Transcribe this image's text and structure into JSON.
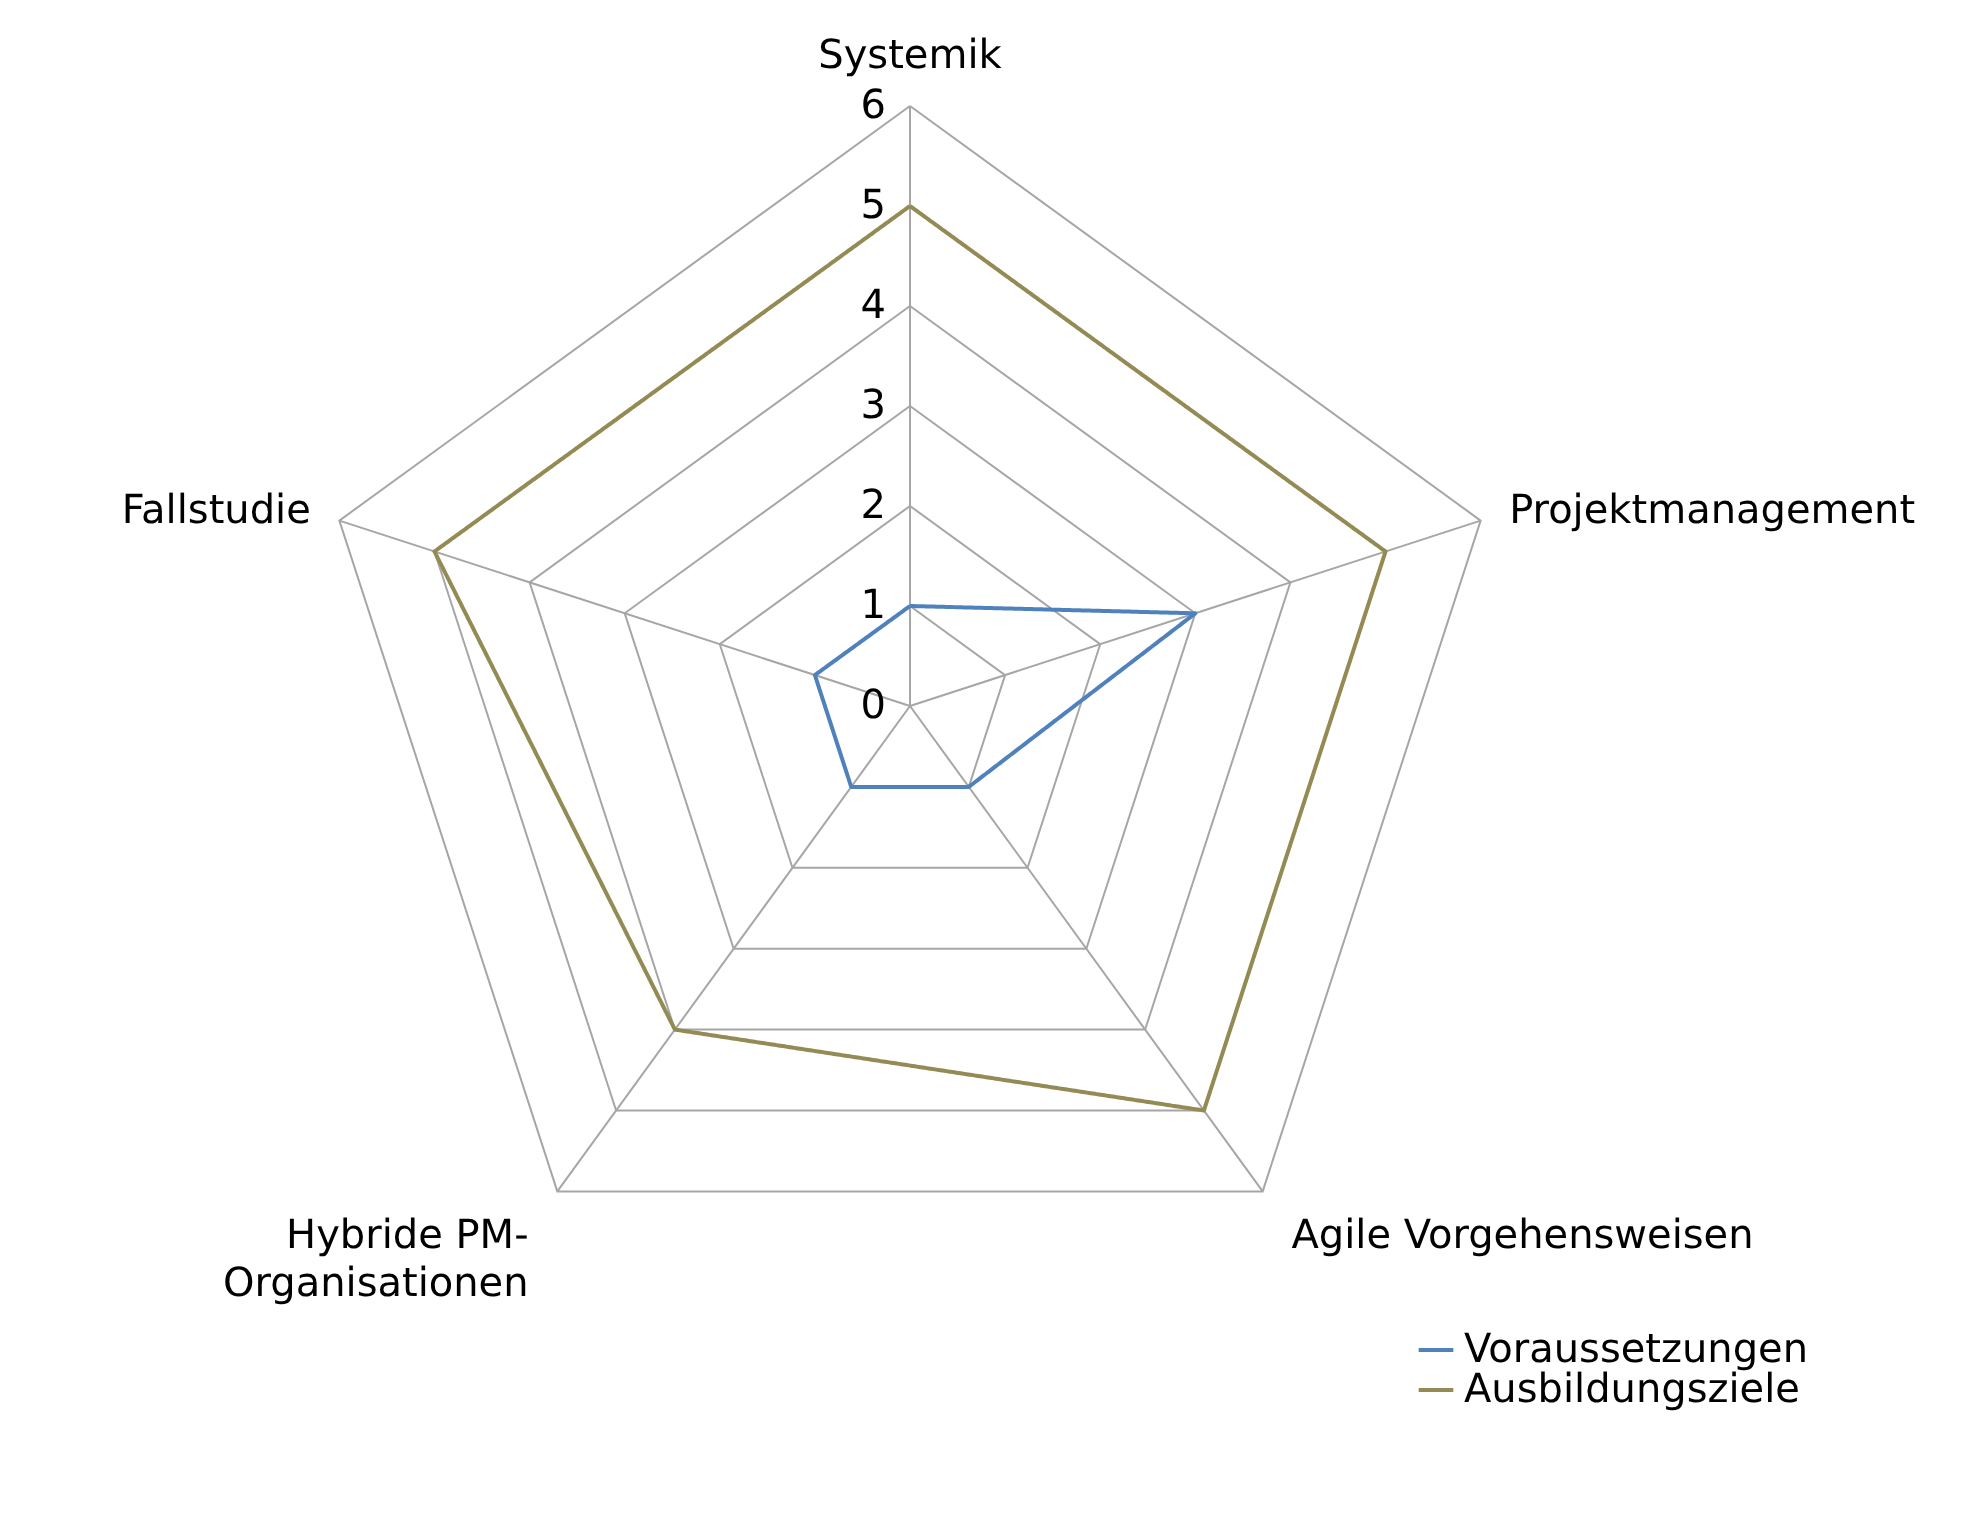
{
  "chart_data": {
    "type": "radar",
    "categories": [
      "Systemik",
      "Projektmanagement",
      "Agile Vorgehensweisen",
      "Hybride PM-Organisationen",
      "Fallstudie"
    ],
    "series": [
      {
        "name": "Voraussetzungen",
        "color": "#4f81bd",
        "values": [
          1,
          3,
          1,
          1,
          1
        ]
      },
      {
        "name": "Ausbildungsziele",
        "color": "#948a54",
        "values": [
          5,
          5,
          5,
          4,
          5
        ]
      }
    ],
    "ylim": [
      0,
      6
    ],
    "yticks": [
      0,
      1,
      2,
      3,
      4,
      5,
      6
    ],
    "grid": true,
    "legend": "bottom right",
    "marker": "none",
    "line_style": "solid"
  }
}
